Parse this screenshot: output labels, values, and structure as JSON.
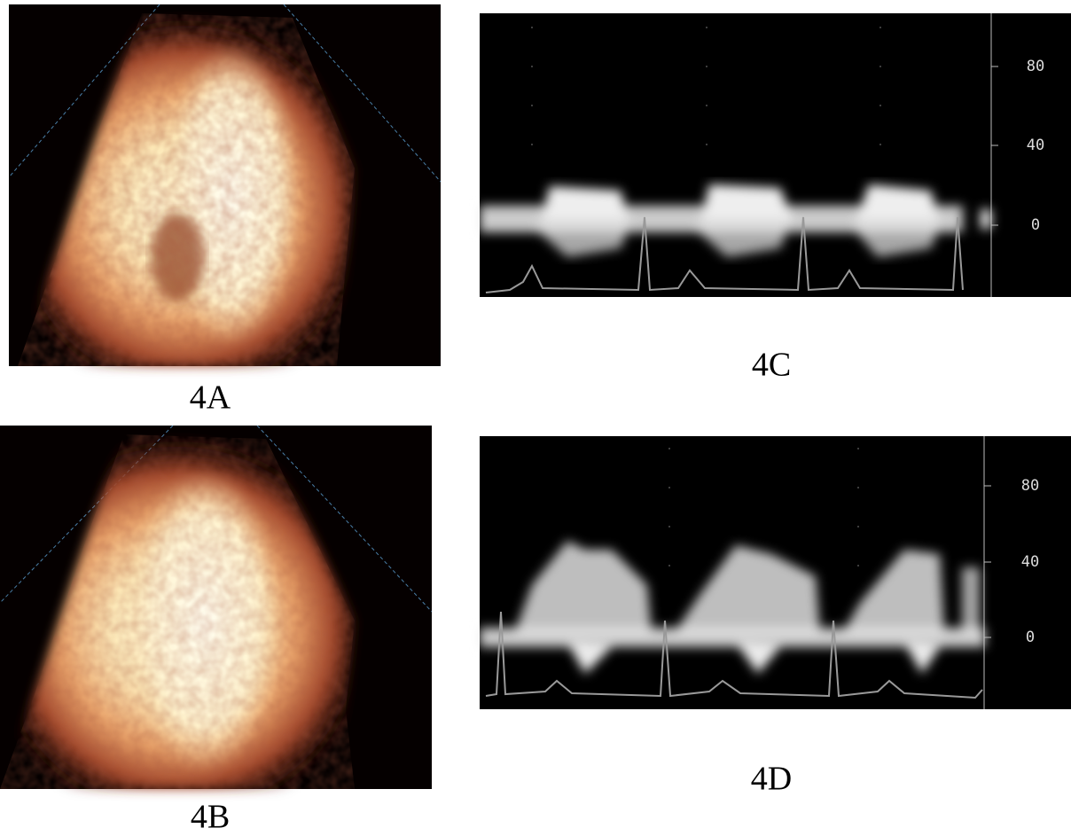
{
  "panels": [
    {
      "label": "4A"
    },
    {
      "label": "4B"
    },
    {
      "label": "4C",
      "scale": [
        "80",
        "40",
        "0"
      ]
    },
    {
      "label": "4D",
      "scale": [
        "80",
        "40",
        "0"
      ]
    }
  ]
}
